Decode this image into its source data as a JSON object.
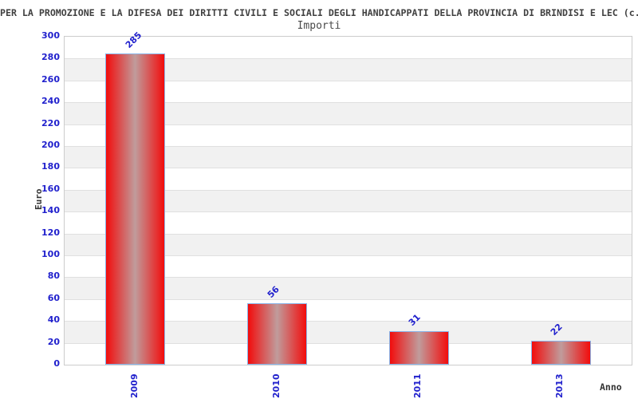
{
  "header": {
    "title": "PER LA PROMOZIONE E LA DIFESA DEI DIRITTI CIVILI E SOCIALI DEGLI HANDICAPPATI DELLA PROVINCIA DI BRINDISI E LEC (c.",
    "subtitle": "Importi"
  },
  "chart_data": {
    "type": "bar",
    "title": "Importi",
    "categories": [
      "2009",
      "2010",
      "2011",
      "2013"
    ],
    "values": [
      285,
      56,
      31,
      22
    ],
    "bar_labels": [
      "285",
      "56",
      "31",
      "22"
    ],
    "xlabel": "Anno",
    "ylabel": "Euro",
    "ylim": [
      0,
      300
    ],
    "ytick_step": 20,
    "grid": true,
    "legend": "none",
    "band_colors": [
      "#ffffff",
      "#f1f1f1"
    ],
    "colors": {
      "bar_edge": "#f20c0c",
      "bar_center": "#c09c9c",
      "bar_border": "#8ab4e8",
      "axis_tick_label": "#2121cd",
      "value_label": "#2121cd",
      "grid_line": "#e0e0e0",
      "plot_border": "#cccccc",
      "title_text": "#404040"
    }
  }
}
